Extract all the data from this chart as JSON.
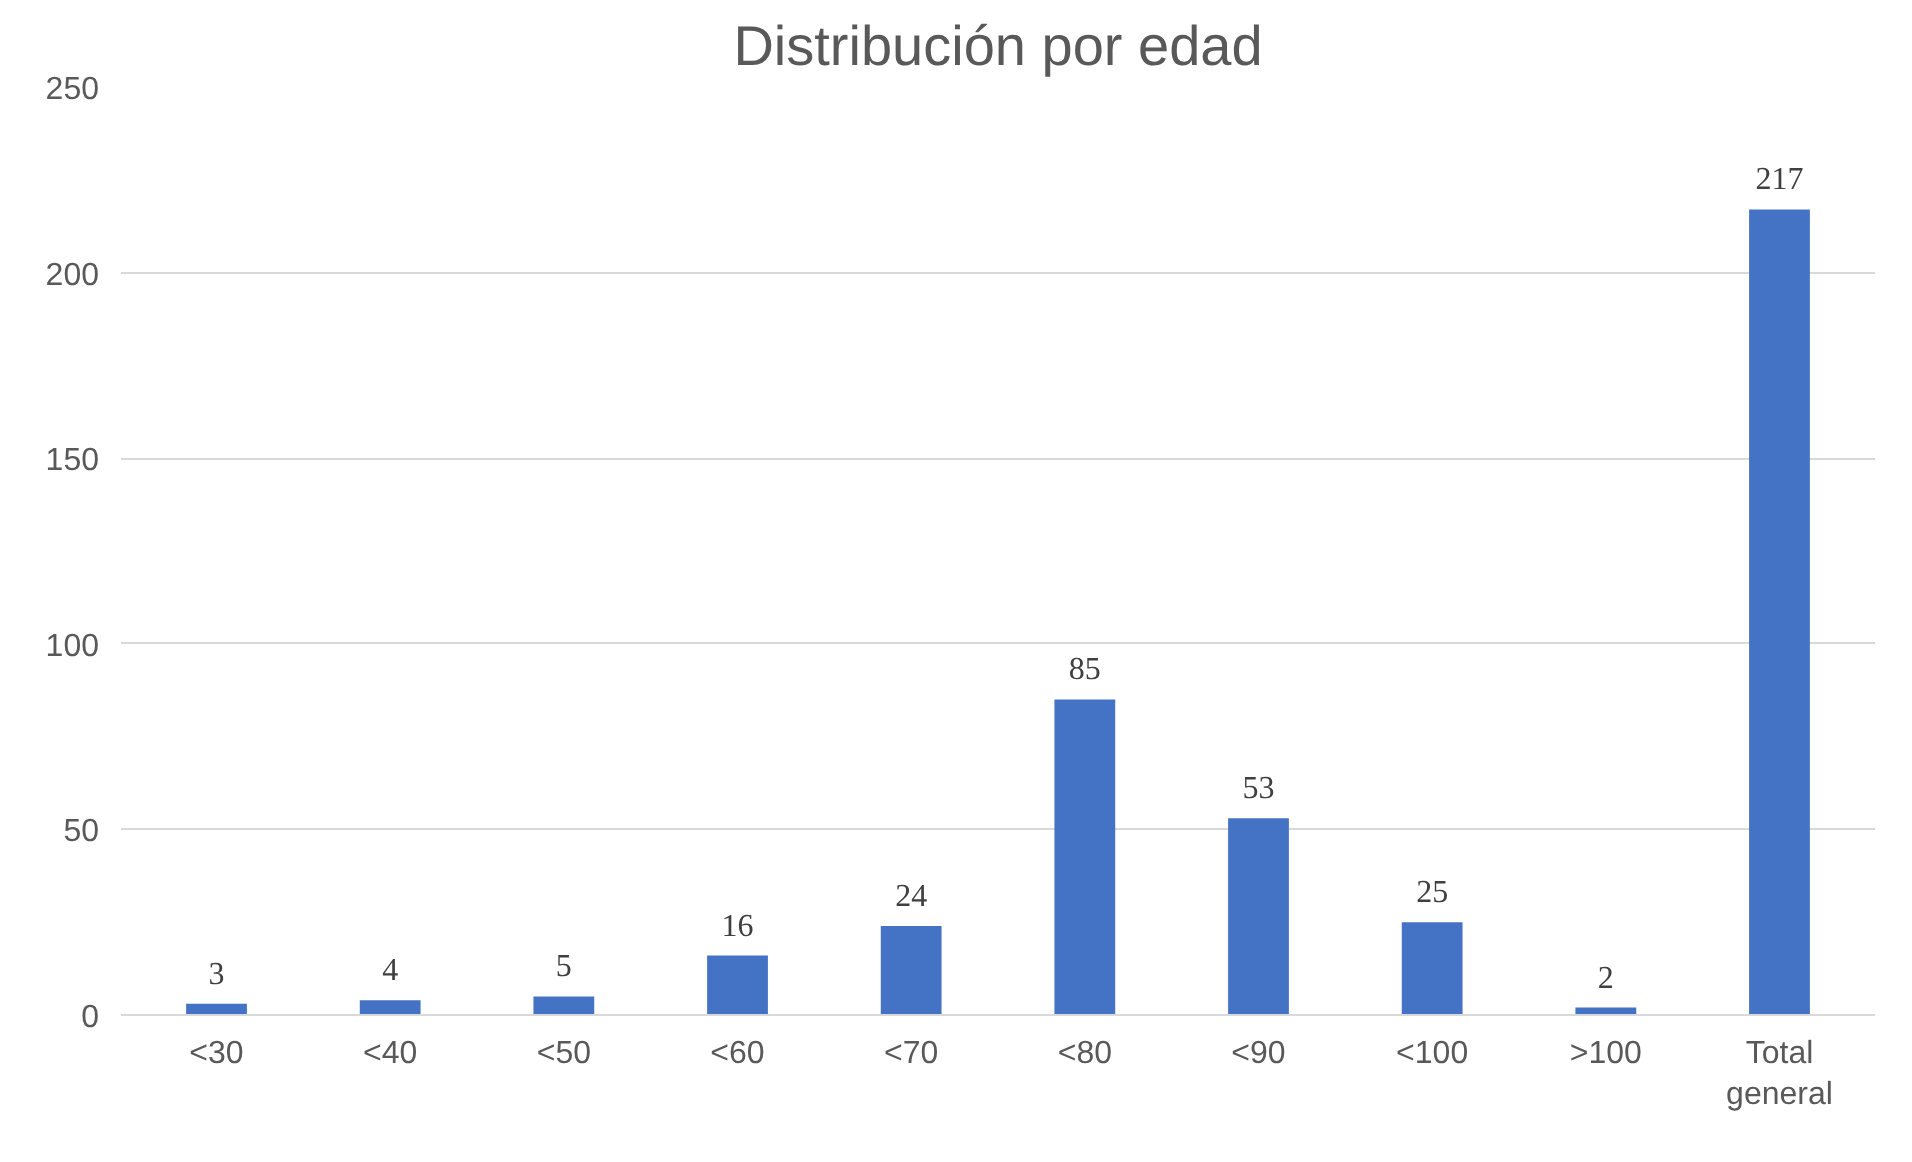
{
  "chart_data": {
    "type": "bar",
    "title": "Distribución por edad",
    "categories": [
      "<30",
      "<40",
      "<50",
      "<60",
      "<70",
      "<80",
      "<90",
      "<100",
      ">100",
      "Total general"
    ],
    "values": [
      3,
      4,
      5,
      16,
      24,
      85,
      53,
      25,
      2,
      217
    ],
    "color": "#4472c4",
    "ylim": [
      0,
      250
    ],
    "yticks": [
      0,
      50,
      100,
      150,
      200,
      250
    ],
    "grid": "y",
    "data_labels": true
  }
}
